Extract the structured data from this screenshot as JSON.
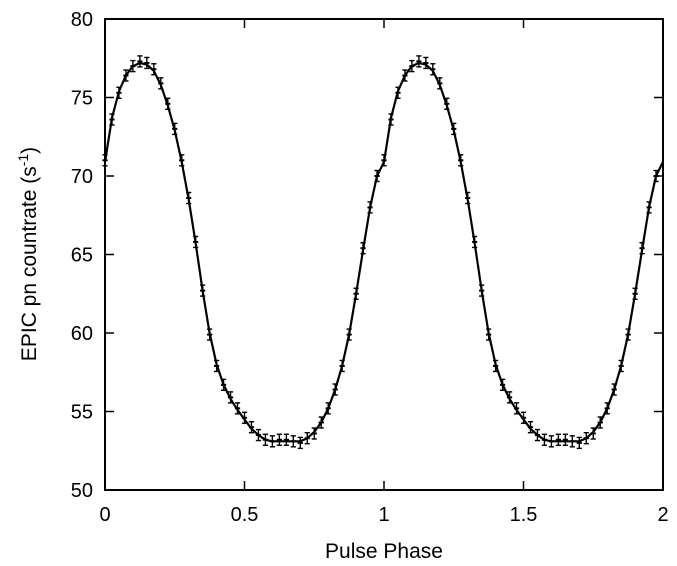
{
  "chart_data": {
    "type": "line",
    "xlabel": "Pulse Phase",
    "ylabel_main": "EPIC pn countrate (s",
    "ylabel_sup": "-1",
    "ylabel_close": ")",
    "xlim": [
      0,
      2
    ],
    "ylim": [
      50,
      80
    ],
    "x_ticks": [
      0,
      0.5,
      1,
      1.5,
      2
    ],
    "x_tick_labels": [
      "0",
      "0.5",
      "1",
      "1.5",
      "2"
    ],
    "y_ticks": [
      50,
      55,
      60,
      65,
      70,
      75,
      80
    ],
    "y_tick_labels": [
      "50",
      "55",
      "60",
      "65",
      "70",
      "75",
      "80"
    ],
    "grid": false,
    "legend": "none",
    "series": [
      {
        "kind": "data-with-errorbars",
        "color": "#000000",
        "x": [
          0.0,
          0.025,
          0.05,
          0.075,
          0.1,
          0.125,
          0.15,
          0.175,
          0.2,
          0.225,
          0.25,
          0.275,
          0.3,
          0.325,
          0.35,
          0.375,
          0.4,
          0.425,
          0.45,
          0.475,
          0.5,
          0.525,
          0.55,
          0.575,
          0.6,
          0.625,
          0.65,
          0.675,
          0.7,
          0.725,
          0.75,
          0.775,
          0.8,
          0.825,
          0.85,
          0.875,
          0.9,
          0.925,
          0.95,
          0.975
        ],
        "y": [
          71.0,
          73.6,
          75.3,
          76.4,
          77.0,
          77.3,
          77.2,
          76.8,
          75.9,
          74.6,
          73.0,
          71.0,
          68.6,
          65.8,
          62.7,
          59.9,
          57.9,
          56.7,
          55.9,
          55.2,
          54.6,
          54.0,
          53.5,
          53.2,
          53.1,
          53.2,
          53.2,
          53.1,
          53.0,
          53.3,
          53.6,
          54.3,
          55.2,
          56.4,
          57.9,
          59.9,
          62.5,
          65.4,
          68.0,
          70.0
        ],
        "yerr": 0.35
      },
      {
        "kind": "model-curve",
        "color": "#000000",
        "x": [
          0.0,
          0.025,
          0.05,
          0.075,
          0.1,
          0.125,
          0.15,
          0.175,
          0.2,
          0.225,
          0.25,
          0.275,
          0.3,
          0.325,
          0.35,
          0.375,
          0.4,
          0.425,
          0.45,
          0.475,
          0.5,
          0.525,
          0.55,
          0.575,
          0.6,
          0.625,
          0.65,
          0.675,
          0.7,
          0.725,
          0.75,
          0.775,
          0.8,
          0.825,
          0.85,
          0.875,
          0.9,
          0.925,
          0.95,
          0.975
        ],
        "y": [
          70.9,
          73.7,
          75.4,
          76.4,
          77.0,
          77.2,
          77.1,
          76.7,
          75.8,
          74.5,
          72.9,
          70.9,
          68.5,
          65.7,
          62.7,
          60.0,
          58.0,
          56.7,
          55.8,
          55.1,
          54.5,
          53.9,
          53.5,
          53.2,
          53.1,
          53.1,
          53.1,
          53.1,
          53.1,
          53.3,
          53.7,
          54.3,
          55.2,
          56.4,
          57.9,
          59.9,
          62.5,
          65.3,
          68.0,
          70.0
        ]
      }
    ]
  }
}
